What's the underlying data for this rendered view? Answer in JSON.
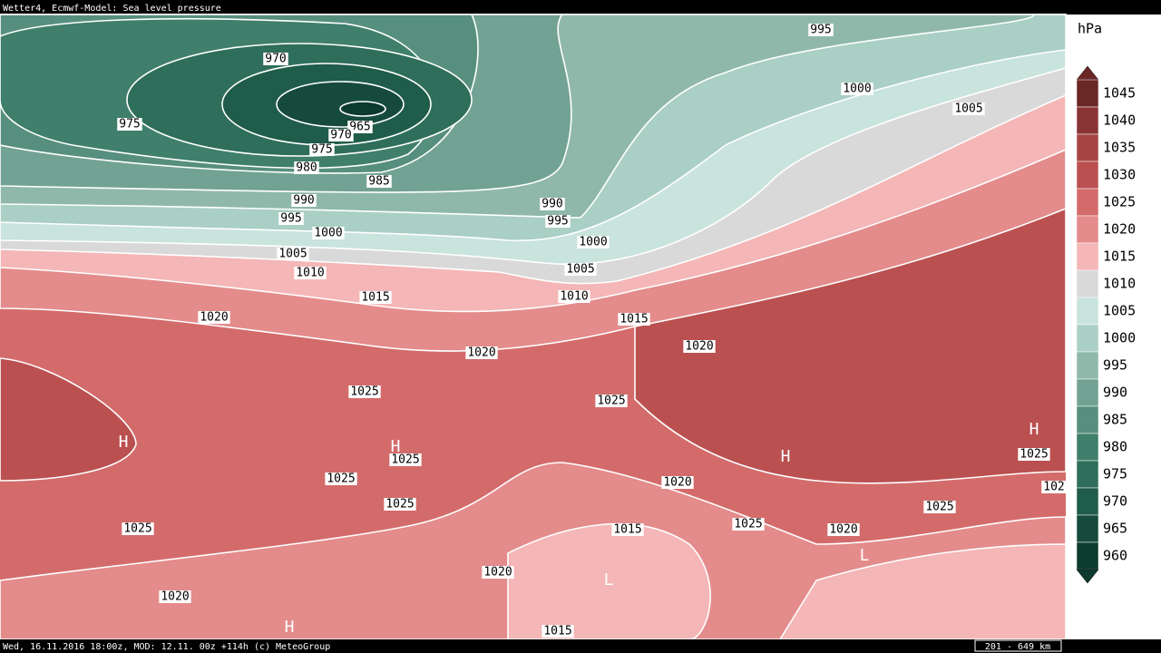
{
  "header": {
    "title": "Wetter4, Ecmwf-Model: Sea level pressure"
  },
  "footer": {
    "text": "Wed, 16.11.2016 18:00z, MOD: 12.11. 00z +114h (c) MeteoGroup",
    "scale": "201 - 649 km"
  },
  "legend": {
    "unit": "hPa",
    "items": [
      {
        "label": "1045",
        "color": "#6b2626"
      },
      {
        "label": "1040",
        "color": "#8a3535"
      },
      {
        "label": "1035",
        "color": "#a64444"
      },
      {
        "label": "1030",
        "color": "#bb5050"
      },
      {
        "label": "1025",
        "color": "#d46b6b"
      },
      {
        "label": "1020",
        "color": "#e48b8b"
      },
      {
        "label": "1015",
        "color": "#f4b6b6"
      },
      {
        "label": "1010",
        "color": "#d9d9d9"
      },
      {
        "label": "1005",
        "color": "#c9e3dd"
      },
      {
        "label": "1000",
        "color": "#aacfc5"
      },
      {
        "label": "995",
        "color": "#8fb8ab"
      },
      {
        "label": "990",
        "color": "#72a293"
      },
      {
        "label": "985",
        "color": "#578f7e"
      },
      {
        "label": "980",
        "color": "#3f7f6b"
      },
      {
        "label": "975",
        "color": "#2e6e5a"
      },
      {
        "label": "970",
        "color": "#1f5c4a"
      },
      {
        "label": "965",
        "color": "#154a3c"
      },
      {
        "label": "960",
        "color": "#0d3a2e"
      }
    ]
  },
  "map": {
    "contour_labels": [
      "995",
      "970",
      "1000",
      "1005",
      "975",
      "965",
      "970",
      "975",
      "980",
      "985",
      "990",
      "990",
      "995",
      "995",
      "1000",
      "1000",
      "1005",
      "1005",
      "1010",
      "1015",
      "1010",
      "1020",
      "1015",
      "1020",
      "1020",
      "1025",
      "1025",
      "1025",
      "1025",
      "1025",
      "1020",
      "102",
      "1025",
      "1025",
      "1025",
      "1015",
      "1025",
      "1020",
      "1020",
      "1020",
      "1015"
    ],
    "pressure_centers": [
      "H",
      "H",
      "H",
      "H",
      "H",
      "L",
      "L"
    ]
  }
}
